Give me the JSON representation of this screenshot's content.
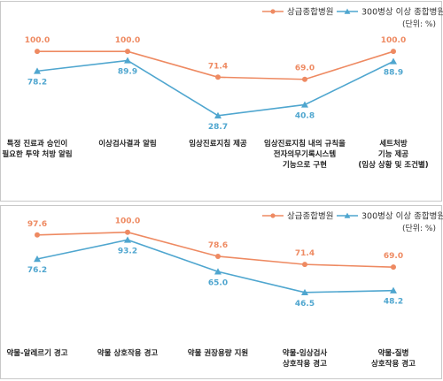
{
  "colors": {
    "series_a": "#ee8a62",
    "series_b": "#4fa6cf"
  },
  "chart_data": [
    {
      "type": "line",
      "unit_label": "(단위: %)",
      "ylim": [
        0,
        110
      ],
      "grid": false,
      "legend_position": "top-right",
      "categories": [
        [
          "특정 진료과 승인이",
          "필요한 투약 처방 알림"
        ],
        [
          "이상검사결과 알림"
        ],
        [
          "임상진료지침 제공"
        ],
        [
          "임상진료지침 내의 규칙을",
          "전자의무기록시스템",
          "기능으로 구현"
        ],
        [
          "세트처방",
          "기능 제공",
          "(임상 상황 및 조건별)"
        ]
      ],
      "series": [
        {
          "name": "상급종합병원",
          "values": [
            100.0,
            100.0,
            71.4,
            69.0,
            100.0
          ],
          "labels": [
            "100.0",
            "100.0",
            "71.4",
            "69.0",
            "100.0"
          ]
        },
        {
          "name": "300병상 이상 종합병원",
          "values": [
            78.2,
            89.9,
            28.7,
            40.8,
            88.9
          ],
          "labels": [
            "78.2",
            "89.9",
            "28.7",
            "40.8",
            "88.9"
          ]
        }
      ]
    },
    {
      "type": "line",
      "unit_label": "(단위: %)",
      "ylim": [
        0,
        110
      ],
      "grid": false,
      "legend_position": "top-right",
      "categories": [
        [
          "약물-알레르기 경고"
        ],
        [
          "약물 상호작용 경고"
        ],
        [
          "약물 권장용량 지원"
        ],
        [
          "약물-임상검사",
          "상호작용 경고"
        ],
        [
          "약물-질병",
          "상호작용 경고"
        ]
      ],
      "series": [
        {
          "name": "상급종합병원",
          "values": [
            97.6,
            100.0,
            78.6,
            71.4,
            69.0
          ],
          "labels": [
            "97.6",
            "100.0",
            "78.6",
            "71.4",
            "69.0"
          ]
        },
        {
          "name": "300병상 이상 종합병원",
          "values": [
            76.2,
            93.2,
            65.0,
            46.5,
            48.2
          ],
          "labels": [
            "76.2",
            "93.2",
            "65.0",
            "46.5",
            "48.2"
          ]
        }
      ]
    }
  ]
}
